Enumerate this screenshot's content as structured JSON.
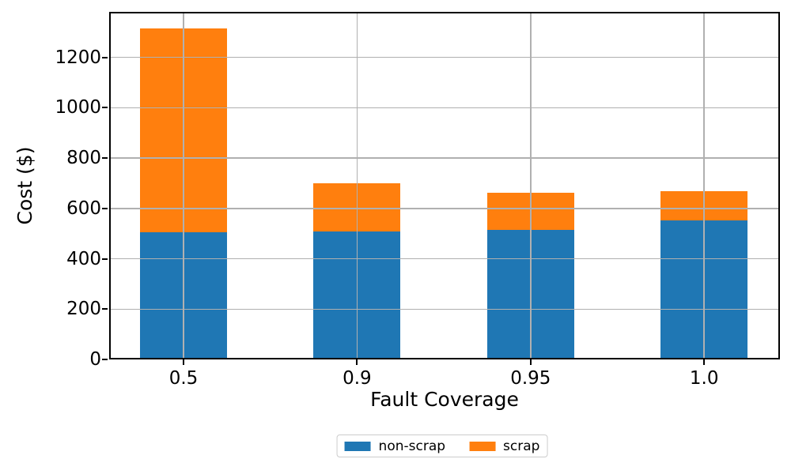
{
  "chart_data": {
    "type": "bar",
    "stacked": true,
    "title": "",
    "xlabel": "Fault Coverage",
    "ylabel": "Cost ($)",
    "categories": [
      "0.5",
      "0.9",
      "0.95",
      "1.0"
    ],
    "series": [
      {
        "name": "non-scrap",
        "color": "#1f77b4",
        "values": [
          505,
          508,
          516,
          554
        ]
      },
      {
        "name": "scrap",
        "color": "#ff7f0e",
        "values": [
          811,
          193,
          147,
          114
        ]
      }
    ],
    "stack_totals": [
      1316,
      701,
      663,
      668
    ],
    "yticks": [
      0,
      200,
      400,
      600,
      800,
      1000,
      1200
    ],
    "ylim": [
      0,
      1381
    ],
    "grid": true,
    "grid_color": "#b0b0b0",
    "grid_above_bars": true,
    "legend_position": "bottom-center",
    "legend_entries": [
      "non-scrap",
      "scrap"
    ],
    "text_color": "#000000",
    "background_color": "#ffffff"
  }
}
